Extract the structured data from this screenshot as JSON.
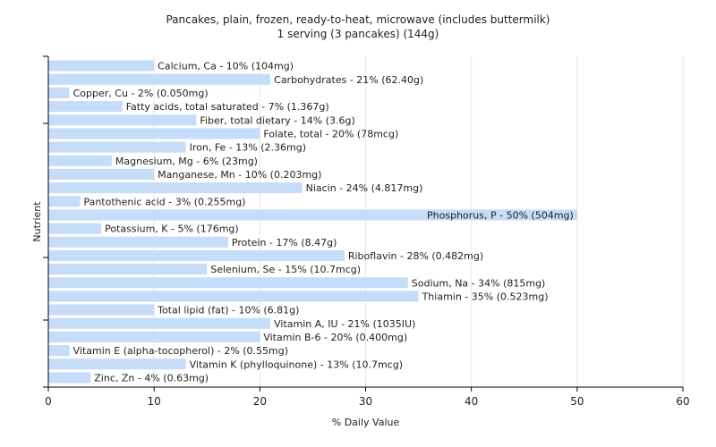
{
  "chart_data": {
    "type": "bar",
    "orientation": "horizontal",
    "title": "Pancakes, plain, frozen, ready-to-heat, microwave (includes buttermilk)",
    "subtitle": "1 serving (3 pancakes) (144g)",
    "xlabel": "% Daily Value",
    "ylabel": "Nutrient",
    "xlim": [
      0,
      60
    ],
    "xticks": [
      "0",
      "10",
      "20",
      "30",
      "40",
      "50",
      "60"
    ],
    "grid": true,
    "bar_color": "#c6ddfa",
    "categories": [
      "Calcium, Ca",
      "Carbohydrates",
      "Copper, Cu",
      "Fatty acids, total saturated",
      "Fiber, total dietary",
      "Folate, total",
      "Iron, Fe",
      "Magnesium, Mg",
      "Manganese, Mn",
      "Niacin",
      "Pantothenic acid",
      "Phosphorus, P",
      "Potassium, K",
      "Protein",
      "Riboflavin",
      "Selenium, Se",
      "Sodium, Na",
      "Thiamin",
      "Total lipid (fat)",
      "Vitamin A, IU",
      "Vitamin B-6",
      "Vitamin E (alpha-tocopherol)",
      "Vitamin K (phylloquinone)",
      "Zinc, Zn"
    ],
    "values": [
      10,
      21,
      2,
      7,
      14,
      20,
      13,
      6,
      10,
      24,
      3,
      50,
      5,
      17,
      28,
      15,
      34,
      35,
      10,
      21,
      20,
      2,
      13,
      4
    ],
    "data_labels": [
      "Calcium, Ca - 10% (104mg)",
      "Carbohydrates - 21% (62.40g)",
      "Copper, Cu - 2% (0.050mg)",
      "Fatty acids, total saturated - 7% (1.367g)",
      "Fiber, total dietary - 14% (3.6g)",
      "Folate, total - 20% (78mcg)",
      "Iron, Fe - 13% (2.36mg)",
      "Magnesium, Mg - 6% (23mg)",
      "Manganese, Mn - 10% (0.203mg)",
      "Niacin - 24% (4.817mg)",
      "Pantothenic acid - 3% (0.255mg)",
      "Phosphorus, P - 50% (504mg)",
      "Potassium, K - 5% (176mg)",
      "Protein - 17% (8.47g)",
      "Riboflavin - 28% (0.482mg)",
      "Selenium, Se - 15% (10.7mcg)",
      "Sodium, Na - 34% (815mg)",
      "Thiamin - 35% (0.523mg)",
      "Total lipid (fat) - 10% (6.81g)",
      "Vitamin A, IU - 21% (1035IU)",
      "Vitamin B-6 - 20% (0.400mg)",
      "Vitamin E (alpha-tocopherol) - 2% (0.55mg)",
      "Vitamin K (phylloquinone) - 13% (10.7mcg)",
      "Zinc, Zn - 4% (0.63mg)"
    ]
  }
}
